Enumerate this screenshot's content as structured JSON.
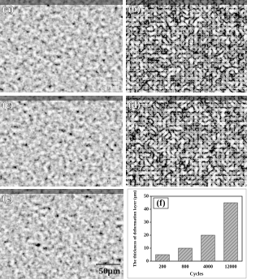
{
  "panels": [
    {
      "label": "(a)",
      "scale": "50 μm"
    },
    {
      "label": "(b)",
      "scale": "50 μm"
    },
    {
      "label": "(c)",
      "scale": "50 μm"
    },
    {
      "label": "(d)",
      "scale": "50 μm"
    },
    {
      "label": "(e)",
      "scale": "50μm"
    }
  ],
  "chart_data": {
    "type": "bar",
    "label": "(f)",
    "xlabel": "Cycles",
    "ylabel": "The thickness of deformation layer (μm)",
    "categories": [
      "200",
      "800",
      "4000",
      "12000"
    ],
    "values": [
      5,
      10,
      20,
      45
    ],
    "color": "#7a7a7a",
    "ylim": [
      0,
      50
    ],
    "yticks": [
      0,
      10,
      20,
      30,
      40,
      50
    ]
  }
}
